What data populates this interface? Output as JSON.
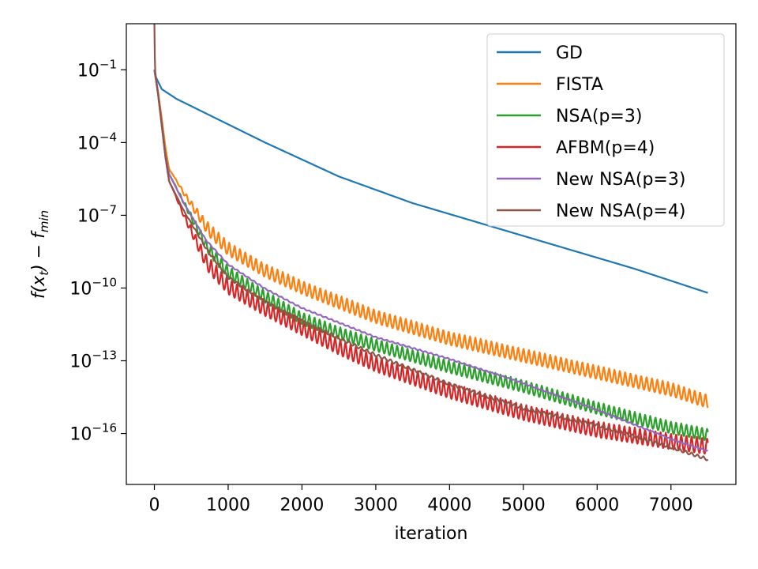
{
  "chart_data": {
    "type": "line",
    "title": "",
    "xlabel": "iteration",
    "ylabel": "f(x_t) − f_min",
    "ylabel_parts": {
      "main": "f(x",
      "sub_t": "t",
      "mid": ") − f",
      "sub_min": "min"
    },
    "xlim": [
      -380,
      7880
    ],
    "ylim_exp": [
      -18.1,
      0.9
    ],
    "y_scale": "log",
    "grid": false,
    "legend_position": "top-right",
    "x_ticks": [
      0,
      1000,
      2000,
      3000,
      4000,
      5000,
      6000,
      7000
    ],
    "x_tick_labels": [
      "0",
      "1000",
      "2000",
      "3000",
      "4000",
      "5000",
      "6000",
      "7000"
    ],
    "y_ticks_exp": [
      -1,
      -4,
      -7,
      -10,
      -13,
      -16
    ],
    "y_tick_labels": [
      {
        "base": "10",
        "exp": "−1"
      },
      {
        "base": "10",
        "exp": "−4"
      },
      {
        "base": "10",
        "exp": "−7"
      },
      {
        "base": "10",
        "exp": "−10"
      },
      {
        "base": "10",
        "exp": "−13"
      },
      {
        "base": "10",
        "exp": "−16"
      }
    ],
    "series": [
      {
        "name": "GD",
        "color": "#1f77b4",
        "osc_amp": 0,
        "osc_period": 150,
        "points": [
          [
            0,
            -1.0
          ],
          [
            20,
            -1.3
          ],
          [
            100,
            -1.8
          ],
          [
            300,
            -2.2
          ],
          [
            700,
            -2.8
          ],
          [
            1500,
            -4.0
          ],
          [
            2500,
            -5.4
          ],
          [
            3500,
            -6.5
          ],
          [
            4500,
            -7.4
          ],
          [
            5500,
            -8.3
          ],
          [
            6500,
            -9.2
          ],
          [
            7500,
            -10.2
          ]
        ]
      },
      {
        "name": "FISTA",
        "color": "#ff7f0e",
        "osc_amp": 0.55,
        "osc_period": 145,
        "points": [
          [
            0,
            -1.0
          ],
          [
            50,
            -1.9
          ],
          [
            100,
            -3.0
          ],
          [
            150,
            -4.2
          ],
          [
            200,
            -5.1
          ],
          [
            400,
            -6.0
          ],
          [
            700,
            -7.2
          ],
          [
            1000,
            -8.1
          ],
          [
            1500,
            -9.0
          ],
          [
            2000,
            -9.7
          ],
          [
            2500,
            -10.3
          ],
          [
            3000,
            -10.9
          ],
          [
            4000,
            -11.8
          ],
          [
            5000,
            -12.5
          ],
          [
            6000,
            -13.2
          ],
          [
            7000,
            -13.9
          ],
          [
            7500,
            -14.4
          ]
        ]
      },
      {
        "name": "NSA(p=3)",
        "color": "#2ca02c",
        "osc_amp": 0.5,
        "osc_period": 140,
        "points": [
          [
            0,
            -1.0
          ],
          [
            50,
            -2.0
          ],
          [
            100,
            -3.2
          ],
          [
            150,
            -4.5
          ],
          [
            200,
            -5.3
          ],
          [
            400,
            -6.4
          ],
          [
            700,
            -8.0
          ],
          [
            1000,
            -9.1
          ],
          [
            1500,
            -10.1
          ],
          [
            2000,
            -11.0
          ],
          [
            2500,
            -11.6
          ],
          [
            3000,
            -12.1
          ],
          [
            4000,
            -13.0
          ],
          [
            5000,
            -13.8
          ],
          [
            6000,
            -14.7
          ],
          [
            7000,
            -15.5
          ],
          [
            7500,
            -15.8
          ]
        ]
      },
      {
        "name": "AFBM(p=4)",
        "color": "#d62728",
        "osc_amp": 0.65,
        "osc_period": 140,
        "points": [
          [
            0,
            -1.0
          ],
          [
            50,
            -2.0
          ],
          [
            100,
            -3.3
          ],
          [
            150,
            -4.6
          ],
          [
            200,
            -5.6
          ],
          [
            400,
            -6.9
          ],
          [
            700,
            -8.6
          ],
          [
            1000,
            -9.6
          ],
          [
            1500,
            -10.5
          ],
          [
            2000,
            -11.3
          ],
          [
            2500,
            -12.1
          ],
          [
            3000,
            -12.8
          ],
          [
            4000,
            -13.9
          ],
          [
            5000,
            -14.8
          ],
          [
            6000,
            -15.5
          ],
          [
            7000,
            -16.0
          ],
          [
            7500,
            -16.2
          ]
        ]
      },
      {
        "name": "New NSA(p=3)",
        "color": "#9467bd",
        "osc_amp": 0.05,
        "osc_period": 150,
        "points": [
          [
            0,
            -1.0
          ],
          [
            50,
            -2.0
          ],
          [
            100,
            -3.2
          ],
          [
            150,
            -4.5
          ],
          [
            200,
            -5.3
          ],
          [
            400,
            -6.5
          ],
          [
            700,
            -8.0
          ],
          [
            1000,
            -9.0
          ],
          [
            1500,
            -10.0
          ],
          [
            2000,
            -10.8
          ],
          [
            2500,
            -11.4
          ],
          [
            3000,
            -12.0
          ],
          [
            4000,
            -12.9
          ],
          [
            5000,
            -13.9
          ],
          [
            6000,
            -15.0
          ],
          [
            7000,
            -16.2
          ],
          [
            7500,
            -16.7
          ]
        ]
      },
      {
        "name": "New NSA(p=4)",
        "color": "#8c564b",
        "osc_amp": 0.12,
        "osc_period": 160,
        "points": [
          [
            0,
            1.0
          ],
          [
            8,
            -1.0
          ],
          [
            50,
            -2.0
          ],
          [
            100,
            -3.3
          ],
          [
            150,
            -4.6
          ],
          [
            200,
            -5.6
          ],
          [
            400,
            -6.8
          ],
          [
            700,
            -8.3
          ],
          [
            1000,
            -9.5
          ],
          [
            1500,
            -10.5
          ],
          [
            2000,
            -11.3
          ],
          [
            2500,
            -12.0
          ],
          [
            3000,
            -12.7
          ],
          [
            4000,
            -13.9
          ],
          [
            5000,
            -14.9
          ],
          [
            6000,
            -15.6
          ],
          [
            7000,
            -16.5
          ],
          [
            7500,
            -17.0
          ]
        ]
      }
    ]
  }
}
